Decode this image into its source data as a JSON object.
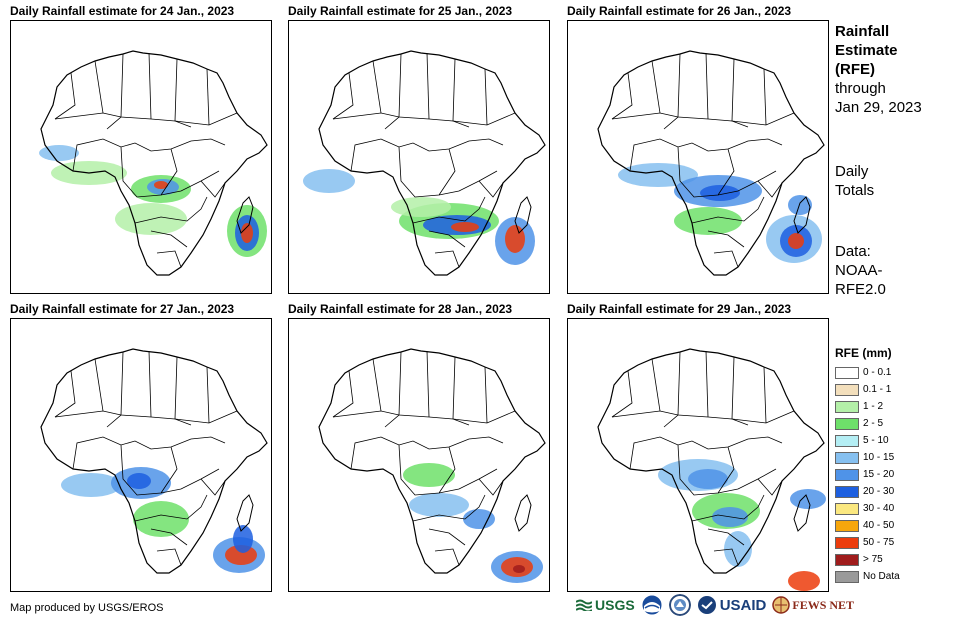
{
  "panels": [
    {
      "title": "Daily Rainfall estimate for 24 Jan., 2023",
      "day": "24"
    },
    {
      "title": "Daily Rainfall estimate for 25 Jan., 2023",
      "day": "25"
    },
    {
      "title": "Daily Rainfall estimate for 26 Jan., 2023",
      "day": "26"
    },
    {
      "title": "Daily Rainfall estimate for 27 Jan., 2023",
      "day": "27"
    },
    {
      "title": "Daily Rainfall estimate for 28 Jan., 2023",
      "day": "28"
    },
    {
      "title": "Daily Rainfall estimate for 29 Jan., 2023",
      "day": "29"
    }
  ],
  "side": {
    "title_line1": "Rainfall",
    "title_line2": "Estimate",
    "title_line3": "(RFE)",
    "through_line1": "through",
    "through_line2": "Jan 29, 2023",
    "totals_line1": "Daily",
    "totals_line2": "Totals",
    "data_line1": "Data:",
    "data_line2": "NOAA-",
    "data_line3": "RFE2.0"
  },
  "legend": {
    "title": "RFE (mm)",
    "items": [
      {
        "label": "0 - 0.1",
        "color": "#ffffff"
      },
      {
        "label": "0.1 - 1",
        "color": "#f3dfbc"
      },
      {
        "label": "1 - 2",
        "color": "#b4f0a8"
      },
      {
        "label": "2 - 5",
        "color": "#6ee06a"
      },
      {
        "label": "5 - 10",
        "color": "#b4eef4"
      },
      {
        "label": "10 - 15",
        "color": "#86c0f0"
      },
      {
        "label": "15 - 20",
        "color": "#4f93e8"
      },
      {
        "label": "20 - 30",
        "color": "#1d5fe0"
      },
      {
        "label": "30 - 40",
        "color": "#fbe880"
      },
      {
        "label": "40 - 50",
        "color": "#f6a60c"
      },
      {
        "label": "50 - 75",
        "color": "#ec3c0c"
      },
      {
        "label": "> 75",
        "color": "#a01c1c"
      },
      {
        "label": "No Data",
        "color": "#9a9a9a"
      }
    ]
  },
  "credit": "Map produced by USGS/EROS",
  "logos": {
    "usgs": "USGS",
    "usaid": "USAID",
    "fews": "FEWS NET",
    "noaa_icon": "noaa-logo-icon",
    "doi_icon": "doi-seal-icon"
  }
}
